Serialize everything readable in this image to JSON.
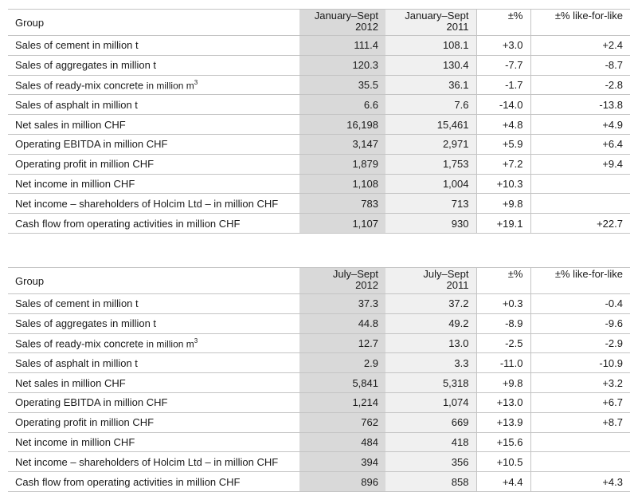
{
  "tables": [
    {
      "headers": {
        "group": "Group",
        "c1": [
          "January–Sept",
          "2012"
        ],
        "c2": [
          "January–Sept",
          "2011"
        ],
        "c3": "±%",
        "c4": "±% like-for-like"
      },
      "rows": [
        {
          "label": "Sales of cement in million t",
          "v1": "111.4",
          "v2": "108.1",
          "v3": "+3.0",
          "v4": "+2.4"
        },
        {
          "label": "Sales of aggregates in million t",
          "v1": "120.3",
          "v2": "130.4",
          "v3": "-7.7",
          "v4": "-8.7"
        },
        {
          "label": "Sales of ready-mix concrete",
          "unit": "in million m",
          "sup": "3",
          "v1": "35.5",
          "v2": "36.1",
          "v3": "-1.7",
          "v4": "-2.8"
        },
        {
          "label": "Sales of asphalt in million t",
          "v1": "6.6",
          "v2": "7.6",
          "v3": "-14.0",
          "v4": "-13.8"
        },
        {
          "label": "Net sales in million CHF",
          "v1": "16,198",
          "v2": "15,461",
          "v3": "+4.8",
          "v4": "+4.9"
        },
        {
          "label": "Operating EBITDA in million CHF",
          "v1": "3,147",
          "v2": "2,971",
          "v3": "+5.9",
          "v4": "+6.4"
        },
        {
          "label": "Operating profit in million CHF",
          "v1": "1,879",
          "v2": "1,753",
          "v3": "+7.2",
          "v4": "+9.4"
        },
        {
          "label": "Net income in million CHF",
          "v1": "1,108",
          "v2": "1,004",
          "v3": "+10.3",
          "v4": ""
        },
        {
          "label": "Net income – shareholders of Holcim Ltd – in million CHF",
          "v1": "783",
          "v2": "713",
          "v3": "+9.8",
          "v4": ""
        },
        {
          "label": "Cash flow from operating activities in million CHF",
          "v1": "1,107",
          "v2": "930",
          "v3": "+19.1",
          "v4": "+22.7"
        }
      ]
    },
    {
      "headers": {
        "group": "Group",
        "c1": [
          "July–Sept",
          "2012"
        ],
        "c2": [
          "July–Sept",
          "2011"
        ],
        "c3": "±%",
        "c4": "±% like-for-like"
      },
      "rows": [
        {
          "label": "Sales of cement in million t",
          "v1": "37.3",
          "v2": "37.2",
          "v3": "+0.3",
          "v4": "-0.4"
        },
        {
          "label": "Sales of aggregates in million t",
          "v1": "44.8",
          "v2": "49.2",
          "v3": "-8.9",
          "v4": "-9.6"
        },
        {
          "label": "Sales of ready-mix concrete",
          "unit": "in million m",
          "sup": "3",
          "v1": "12.7",
          "v2": "13.0",
          "v3": "-2.5",
          "v4": "-2.9"
        },
        {
          "label": "Sales of asphalt in million t",
          "v1": "2.9",
          "v2": "3.3",
          "v3": "-11.0",
          "v4": "-10.9"
        },
        {
          "label": "Net sales in million CHF",
          "v1": "5,841",
          "v2": "5,318",
          "v3": "+9.8",
          "v4": "+3.2"
        },
        {
          "label": "Operating EBITDA in million CHF",
          "v1": "1,214",
          "v2": "1,074",
          "v3": "+13.0",
          "v4": "+6.7"
        },
        {
          "label": "Operating profit in million CHF",
          "v1": "762",
          "v2": "669",
          "v3": "+13.9",
          "v4": "+8.7"
        },
        {
          "label": "Net income in million CHF",
          "v1": "484",
          "v2": "418",
          "v3": "+15.6",
          "v4": ""
        },
        {
          "label": "Net income – shareholders of Holcim Ltd – in million CHF",
          "v1": "394",
          "v2": "356",
          "v3": "+10.5",
          "v4": ""
        },
        {
          "label": "Cash flow from operating activities in million CHF",
          "v1": "896",
          "v2": "858",
          "v3": "+4.4",
          "v4": "+4.3"
        }
      ]
    }
  ]
}
